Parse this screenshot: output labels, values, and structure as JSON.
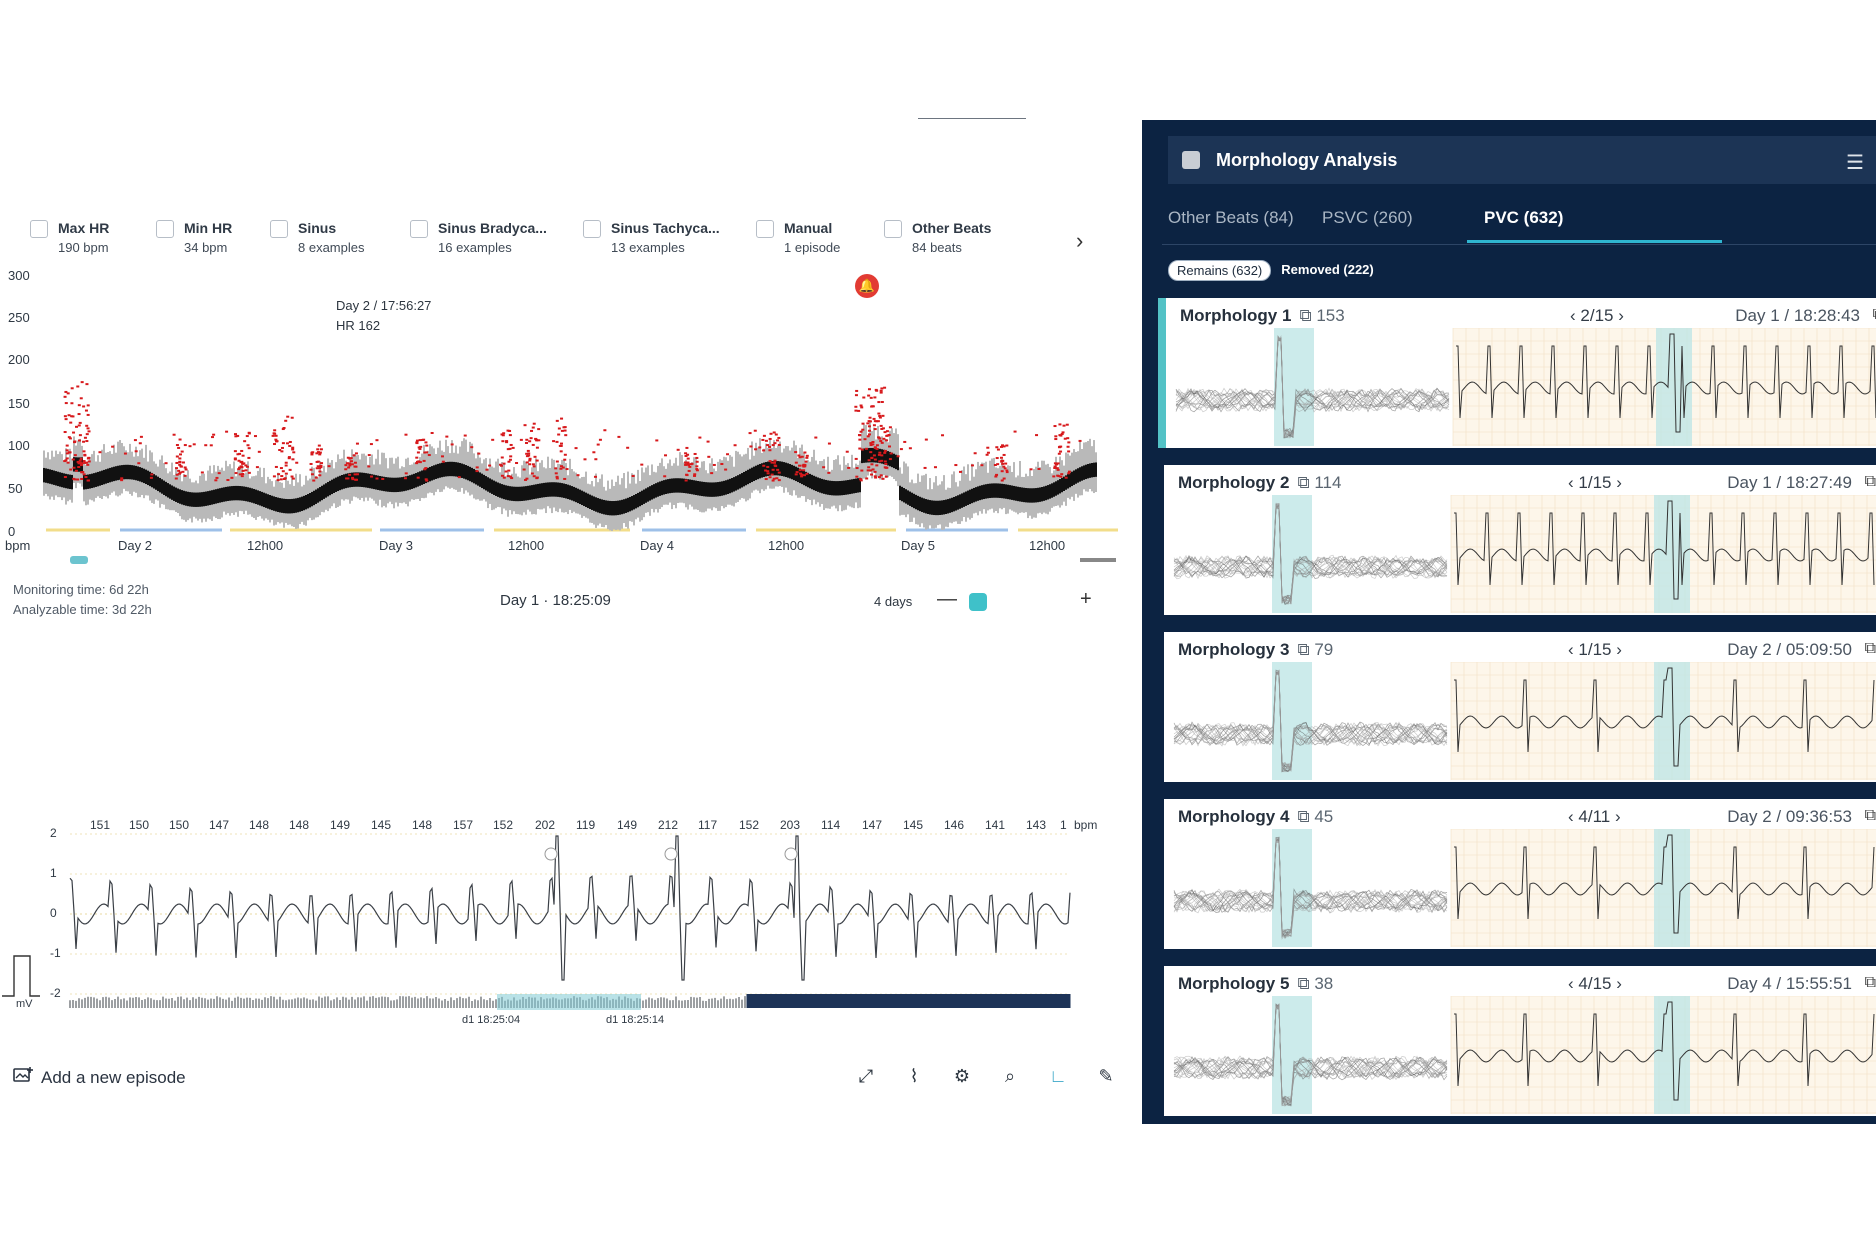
{
  "filters": [
    {
      "name": "Max HR",
      "sub": "190 bpm"
    },
    {
      "name": "Min HR",
      "sub": "34 bpm"
    },
    {
      "name": "Sinus",
      "sub": "8 examples"
    },
    {
      "name": "Sinus Bradyca...",
      "sub": "16 examples"
    },
    {
      "name": "Sinus Tachyca...",
      "sub": "13 examples"
    },
    {
      "name": "Manual",
      "sub": "1 episode"
    },
    {
      "name": "Other Beats",
      "sub": "84 beats"
    }
  ],
  "hr_chart": {
    "y_ticks": [
      "300",
      "250",
      "200",
      "150",
      "100",
      "50",
      "0"
    ],
    "y_unit": "bpm",
    "x_ticks": [
      "Day 2",
      "12h00",
      "Day 3",
      "12h00",
      "Day 4",
      "12h00",
      "Day 5",
      "12h00"
    ],
    "tooltip_time": "Day 2 / 17:56:27",
    "tooltip_hr": "HR 162",
    "colors": {
      "trend": "#111111",
      "band": "#b9b9b9",
      "events": "#d7191c"
    }
  },
  "monitoring": {
    "monitoring_time": "Monitoring time: 6d 22h",
    "analyzable_time": "Analyzable time: 3d 22h"
  },
  "current_day": "Day 1 · 18:25:09",
  "zoom": {
    "label": "4 days",
    "minus": "—",
    "plus": "+"
  },
  "ecg": {
    "bpm_values": [
      "151",
      "150",
      "150",
      "147",
      "148",
      "148",
      "149",
      "145",
      "148",
      "157",
      "152",
      "202",
      "119",
      "149",
      "212",
      "117",
      "152",
      "203",
      "114",
      "147",
      "145",
      "146",
      "141",
      "143",
      "1"
    ],
    "bpm_unit": "bpm",
    "y_ticks": [
      "2",
      "1",
      "0",
      "-1",
      "-2"
    ],
    "unit": "mV",
    "timestamps": [
      "d1 18:25:04",
      "d1 18:25:14"
    ]
  },
  "add_episode": "Add a new episode",
  "tools": [
    "expand-icon",
    "waveform-icon",
    "settings-icon",
    "search-icon",
    "axis-icon",
    "ruler-icon"
  ],
  "panel": {
    "title": "Morphology Analysis",
    "tabs": [
      {
        "label": "Other Beats (84)",
        "active": false
      },
      {
        "label": "PSVC (260)",
        "active": false
      },
      {
        "label": "PVC (632)",
        "active": true
      }
    ],
    "chips": [
      {
        "label": "Remains (632)",
        "active": true
      },
      {
        "label": "Removed (222)",
        "active": false
      }
    ],
    "morphologies": [
      {
        "name": "Morphology 1",
        "count": "153",
        "nav": "2/15",
        "time": "Day 1 / 18:28:43"
      },
      {
        "name": "Morphology 2",
        "count": "114",
        "nav": "1/15",
        "time": "Day 1 / 18:27:49"
      },
      {
        "name": "Morphology 3",
        "count": "79",
        "nav": "1/15",
        "time": "Day 2 / 05:09:50"
      },
      {
        "name": "Morphology 4",
        "count": "45",
        "nav": "4/11",
        "time": "Day 2 / 09:36:53"
      },
      {
        "name": "Morphology 5",
        "count": "38",
        "nav": "4/15",
        "time": "Day 4 / 15:55:51"
      }
    ]
  }
}
